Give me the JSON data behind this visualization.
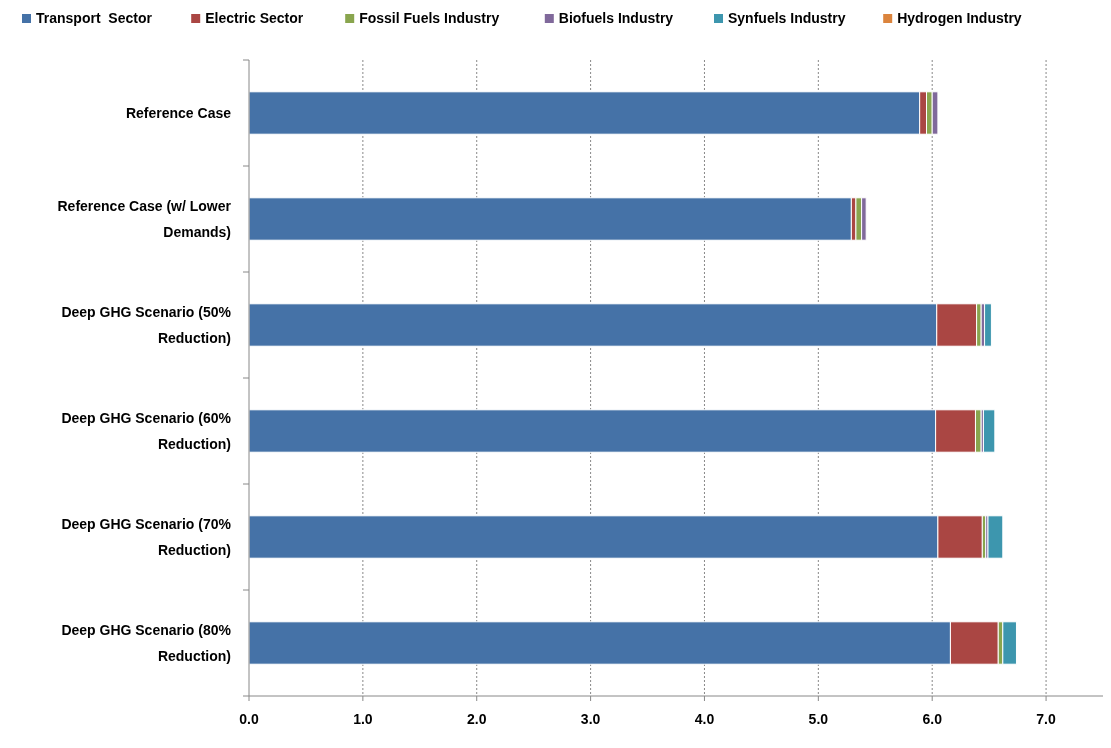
{
  "chart_data": {
    "type": "bar",
    "orientation": "horizontal",
    "stacked": true,
    "legend": "top",
    "grid": "x",
    "categories": [
      "Reference Case",
      "Reference Case (w/ Lower Demands)",
      "Deep GHG Scenario (50% Reduction)",
      "Deep GHG Scenario (60% Reduction)",
      "Deep GHG Scenario (70% Reduction)",
      "Deep GHG Scenario (80% Reduction)"
    ],
    "series": [
      {
        "name": "Transport  Sector",
        "color": "#4572a7",
        "values": [
          5.89,
          5.29,
          6.04,
          6.03,
          6.05,
          6.16
        ]
      },
      {
        "name": "Electric Sector",
        "color": "#aa4643",
        "values": [
          0.06,
          0.04,
          0.35,
          0.35,
          0.39,
          0.42
        ]
      },
      {
        "name": "Fossil Fuels Industry",
        "color": "#89a54e",
        "values": [
          0.05,
          0.05,
          0.04,
          0.05,
          0.03,
          0.04
        ]
      },
      {
        "name": "Biofuels Industry",
        "color": "#80699b",
        "values": [
          0.05,
          0.04,
          0.03,
          0.02,
          0.02,
          null
        ]
      },
      {
        "name": "Synfuels Industry",
        "color": "#3d96ae",
        "values": [
          0,
          0,
          0.06,
          0.1,
          0.13,
          0.12
        ]
      },
      {
        "name": "Hydrogen Industry",
        "color": "#db843d",
        "values": [
          0,
          0,
          0,
          0,
          0,
          0
        ]
      }
    ],
    "xlim": [
      0,
      7.5
    ],
    "xticks": [
      {
        "value": 0,
        "label": "0.0"
      },
      {
        "value": 1,
        "label": "1.0"
      },
      {
        "value": 2,
        "label": "2.0"
      },
      {
        "value": 3,
        "label": "3.0"
      },
      {
        "value": 4,
        "label": "4.0"
      },
      {
        "value": 5,
        "label": "5.0"
      },
      {
        "value": 6,
        "label": "6.0"
      },
      {
        "value": 7,
        "label": "7.0"
      }
    ]
  }
}
